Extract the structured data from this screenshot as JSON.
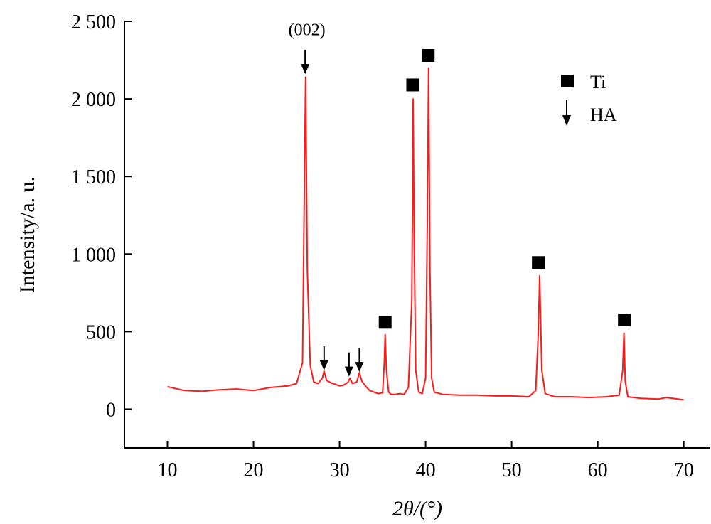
{
  "colors": {
    "series": "#ff1a1a",
    "axis": "#000000",
    "marker": "#000000"
  },
  "chart_data": {
    "type": "line",
    "title": "",
    "xlabel": "2θ/(°)",
    "ylabel": "Intensity/a. u.",
    "xlim": [
      5,
      73
    ],
    "ylim": [
      -250,
      2500
    ],
    "xticks": [
      10,
      20,
      30,
      40,
      50,
      60,
      70
    ],
    "yticks": [
      0,
      500,
      1000,
      1500,
      2000,
      2500
    ],
    "ytick_labels": [
      "0",
      "500",
      "1 000",
      "1 500",
      "2 000",
      "2 500"
    ],
    "grid": false,
    "series": [
      {
        "x": [
          10,
          12,
          14,
          16,
          18,
          20,
          22,
          24,
          25,
          25.7,
          25.9,
          26.05,
          26.25,
          26.6,
          27,
          27.5,
          28,
          28.2,
          28.5,
          29,
          29.5,
          30,
          30.5,
          31,
          31.2,
          31.5,
          32,
          32.3,
          32.6,
          33,
          33.5,
          34,
          34.5,
          35,
          35.2,
          35.3,
          35.45,
          35.7,
          36,
          36.5,
          37,
          37.5,
          38,
          38.4,
          38.55,
          38.65,
          38.85,
          39.2,
          39.6,
          40,
          40.2,
          40.35,
          40.5,
          40.7,
          41,
          42,
          44,
          46,
          48,
          50,
          52,
          52.8,
          53.1,
          53.25,
          53.5,
          53.9,
          55,
          57,
          59,
          61,
          62.5,
          62.9,
          63.05,
          63.2,
          63.5,
          65,
          67,
          68,
          70
        ],
        "y": [
          145,
          120,
          115,
          125,
          130,
          120,
          140,
          150,
          165,
          300,
          1400,
          2140,
          900,
          280,
          175,
          165,
          200,
          245,
          185,
          170,
          160,
          150,
          155,
          175,
          200,
          165,
          175,
          235,
          180,
          150,
          120,
          110,
          100,
          105,
          300,
          480,
          250,
          110,
          95,
          95,
          100,
          95,
          140,
          700,
          2000,
          1200,
          250,
          110,
          100,
          200,
          1200,
          2200,
          900,
          200,
          110,
          95,
          90,
          90,
          85,
          85,
          80,
          120,
          500,
          860,
          250,
          100,
          80,
          80,
          75,
          80,
          90,
          250,
          490,
          180,
          80,
          70,
          65,
          75,
          60
        ]
      }
    ],
    "ti_markers": [
      {
        "x": 35.3,
        "y": 560
      },
      {
        "x": 38.5,
        "y": 2090
      },
      {
        "x": 40.3,
        "y": 2280
      },
      {
        "x": 53.1,
        "y": 945
      },
      {
        "x": 63.1,
        "y": 575
      }
    ],
    "ha_markers": [
      {
        "x": 26.0,
        "y": 2160
      },
      {
        "x": 28.2,
        "y": 250
      },
      {
        "x": 31.1,
        "y": 210
      },
      {
        "x": 32.3,
        "y": 240
      }
    ],
    "annotations": [
      {
        "text": "(002)",
        "x": 26.2,
        "y": 2410
      }
    ],
    "legend": {
      "placement": "top-right",
      "entries": [
        {
          "marker": "square",
          "label": "Ti"
        },
        {
          "marker": "arrow",
          "label": "HA"
        }
      ]
    }
  }
}
